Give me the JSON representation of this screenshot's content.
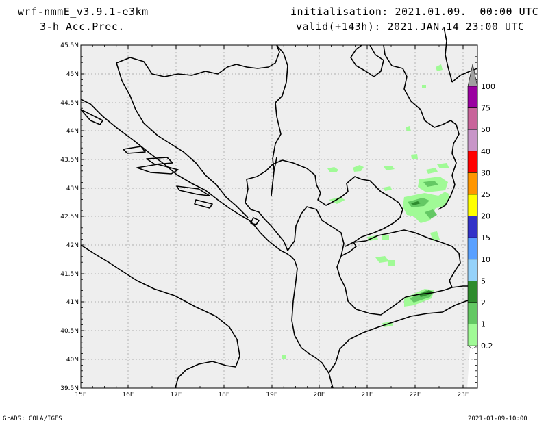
{
  "header": {
    "model": "wrf-nmmE_v3.9.1-e3km",
    "field": "3-h Acc.Prec.",
    "init": "initialisation: 2021.01.09.  00:00 UTC",
    "valid": "valid(+143h): 2021.JAN.14 23:00 UTC"
  },
  "footer": {
    "credit": "GrADS: COLA/IGES",
    "timestamp": "2021-01-09-10:00"
  },
  "map": {
    "background": "#eeeeee",
    "lon_ticks": [
      "15E",
      "16E",
      "17E",
      "18E",
      "19E",
      "20E",
      "21E",
      "22E",
      "23E"
    ],
    "lat_ticks": [
      "45.5N",
      "45N",
      "44.5N",
      "44N",
      "43.5N",
      "43N",
      "42.5N",
      "42N",
      "41.5N",
      "41N",
      "40.5N",
      "40N",
      "39.5N"
    ]
  },
  "colorbar": {
    "labels": [
      "100",
      "75",
      "50",
      "40",
      "30",
      "25",
      "20",
      "15",
      "10",
      "5",
      "2",
      "1",
      "0.2"
    ],
    "colors": [
      "#a0a0a0",
      "#9a00a0",
      "#c8649a",
      "#c896c8",
      "#ff0000",
      "#ff9600",
      "#ffff00",
      "#3232c8",
      "#5aa0ff",
      "#96d2fa",
      "#2e8b2e",
      "#64c864",
      "#a0fa96"
    ]
  }
}
